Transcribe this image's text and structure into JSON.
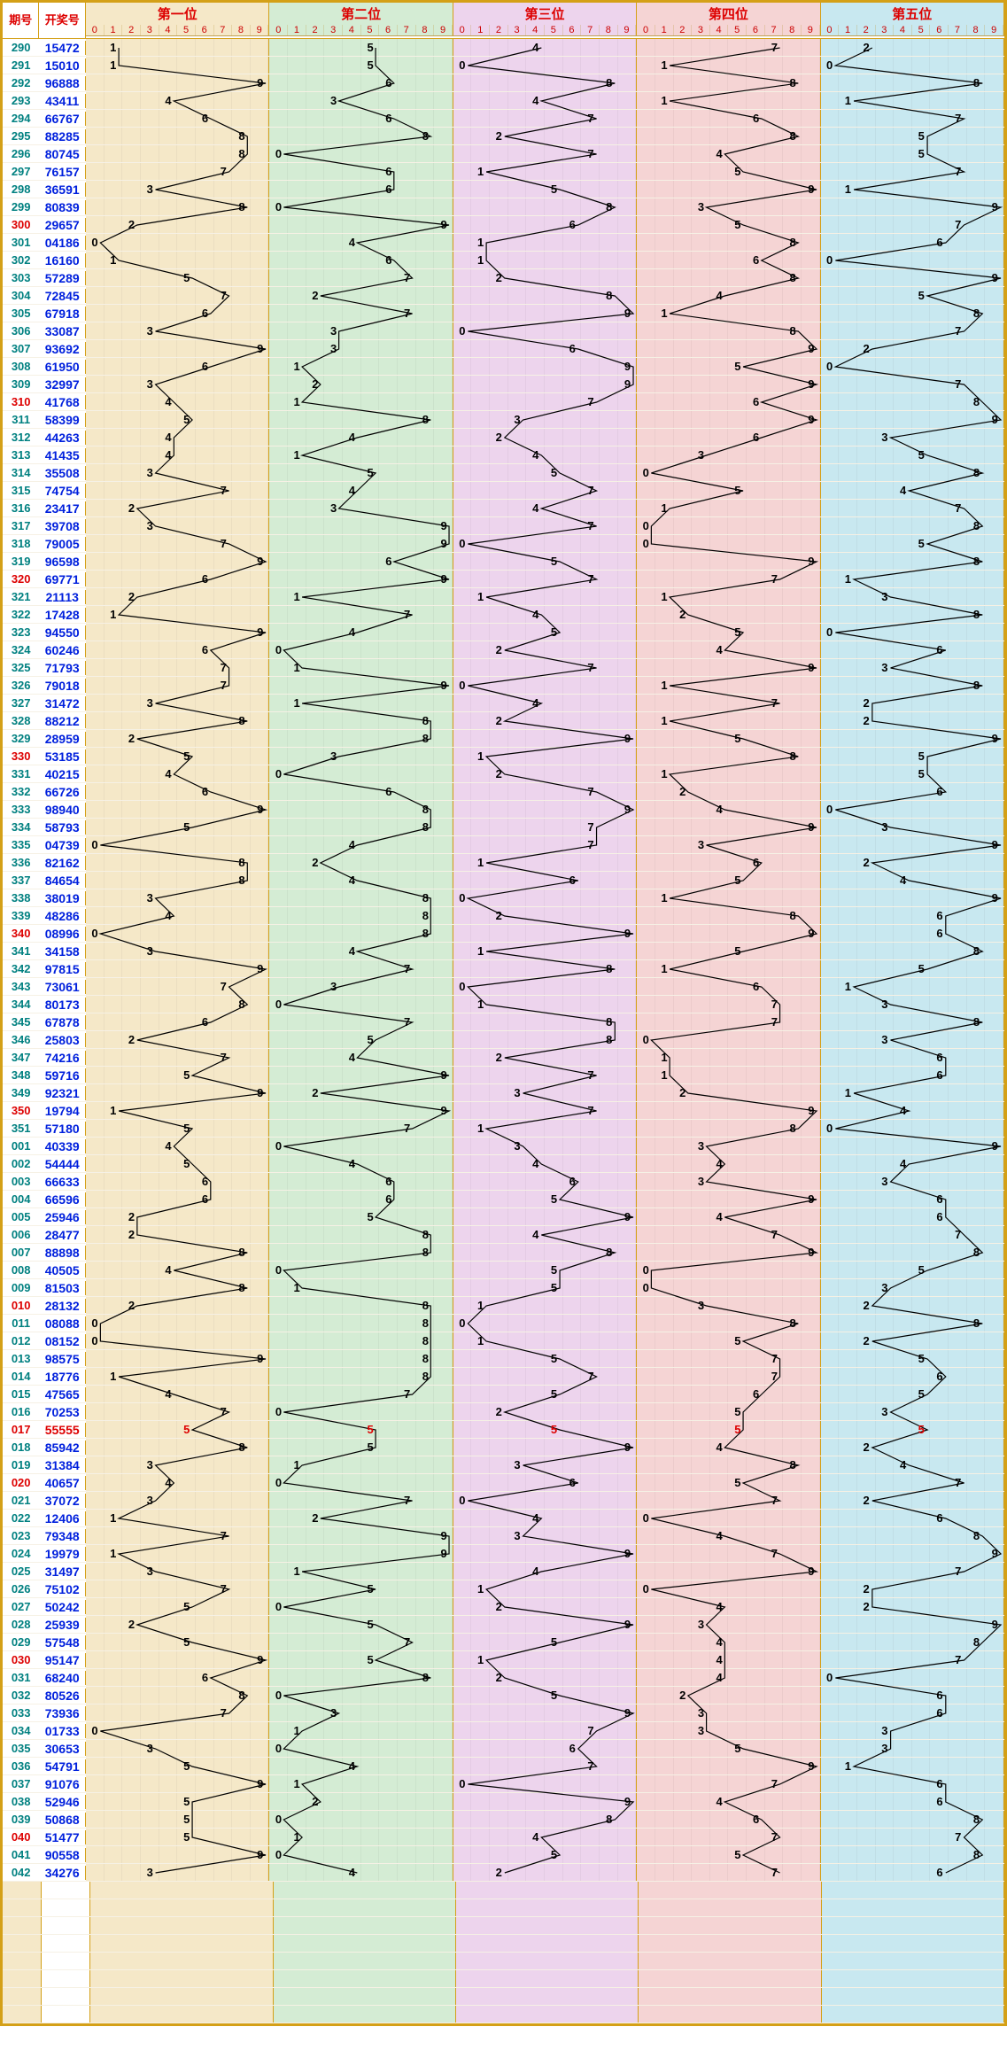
{
  "columns": {
    "qh": "期号",
    "kj": "开奖号",
    "positions": [
      "第一位",
      "第二位",
      "第三位",
      "第四位",
      "第五位"
    ]
  },
  "digits": [
    "0",
    "1",
    "2",
    "3",
    "4",
    "5",
    "6",
    "7",
    "8",
    "9"
  ],
  "position_bg": [
    "#f5e8c8",
    "#d4ecd4",
    "#edd4ed",
    "#f5d4d4",
    "#c8e8f0"
  ],
  "line_color": "#000000",
  "line_width": 1.2,
  "qh_colors": {
    "normal": "#008080",
    "red": "#dd0000"
  },
  "red_periods": [
    "300",
    "310",
    "320",
    "330",
    "340",
    "350",
    "010",
    "020",
    "030",
    "040",
    "017"
  ],
  "extra_blank_rows": 8,
  "rows": [
    {
      "q": "290",
      "n": "15472"
    },
    {
      "q": "291",
      "n": "15010"
    },
    {
      "q": "292",
      "n": "96888"
    },
    {
      "q": "293",
      "n": "43411"
    },
    {
      "q": "294",
      "n": "66767"
    },
    {
      "q": "295",
      "n": "88285"
    },
    {
      "q": "296",
      "n": "80745"
    },
    {
      "q": "297",
      "n": "76157"
    },
    {
      "q": "298",
      "n": "36591"
    },
    {
      "q": "299",
      "n": "80839"
    },
    {
      "q": "300",
      "n": "29657"
    },
    {
      "q": "301",
      "n": "04186"
    },
    {
      "q": "302",
      "n": "16160"
    },
    {
      "q": "303",
      "n": "57289"
    },
    {
      "q": "304",
      "n": "72845"
    },
    {
      "q": "305",
      "n": "67918"
    },
    {
      "q": "306",
      "n": "33087"
    },
    {
      "q": "307",
      "n": "93692"
    },
    {
      "q": "308",
      "n": "61950"
    },
    {
      "q": "309",
      "n": "32997"
    },
    {
      "q": "310",
      "n": "41768"
    },
    {
      "q": "311",
      "n": "58399"
    },
    {
      "q": "312",
      "n": "44263"
    },
    {
      "q": "313",
      "n": "41435"
    },
    {
      "q": "314",
      "n": "35508"
    },
    {
      "q": "315",
      "n": "74754"
    },
    {
      "q": "316",
      "n": "23417"
    },
    {
      "q": "317",
      "n": "39708"
    },
    {
      "q": "318",
      "n": "79005"
    },
    {
      "q": "319",
      "n": "96598"
    },
    {
      "q": "320",
      "n": "69771"
    },
    {
      "q": "321",
      "n": "21113"
    },
    {
      "q": "322",
      "n": "17428"
    },
    {
      "q": "323",
      "n": "94550"
    },
    {
      "q": "324",
      "n": "60246"
    },
    {
      "q": "325",
      "n": "71793"
    },
    {
      "q": "326",
      "n": "79018"
    },
    {
      "q": "327",
      "n": "31472"
    },
    {
      "q": "328",
      "n": "88212"
    },
    {
      "q": "329",
      "n": "28959"
    },
    {
      "q": "330",
      "n": "53185"
    },
    {
      "q": "331",
      "n": "40215"
    },
    {
      "q": "332",
      "n": "66726"
    },
    {
      "q": "333",
      "n": "98940"
    },
    {
      "q": "334",
      "n": "58793"
    },
    {
      "q": "335",
      "n": "04739"
    },
    {
      "q": "336",
      "n": "82162"
    },
    {
      "q": "337",
      "n": "84654"
    },
    {
      "q": "338",
      "n": "38019"
    },
    {
      "q": "339",
      "n": "48286"
    },
    {
      "q": "340",
      "n": "08996"
    },
    {
      "q": "341",
      "n": "34158"
    },
    {
      "q": "342",
      "n": "97815"
    },
    {
      "q": "343",
      "n": "73061"
    },
    {
      "q": "344",
      "n": "80173"
    },
    {
      "q": "345",
      "n": "67878"
    },
    {
      "q": "346",
      "n": "25803"
    },
    {
      "q": "347",
      "n": "74216"
    },
    {
      "q": "348",
      "n": "59716"
    },
    {
      "q": "349",
      "n": "92321"
    },
    {
      "q": "350",
      "n": "19794"
    },
    {
      "q": "351",
      "n": "57180"
    },
    {
      "q": "001",
      "n": "40339"
    },
    {
      "q": "002",
      "n": "54444"
    },
    {
      "q": "003",
      "n": "66633"
    },
    {
      "q": "004",
      "n": "66596"
    },
    {
      "q": "005",
      "n": "25946"
    },
    {
      "q": "006",
      "n": "28477"
    },
    {
      "q": "007",
      "n": "88898"
    },
    {
      "q": "008",
      "n": "40505"
    },
    {
      "q": "009",
      "n": "81503"
    },
    {
      "q": "010",
      "n": "28132"
    },
    {
      "q": "011",
      "n": "08088"
    },
    {
      "q": "012",
      "n": "08152"
    },
    {
      "q": "013",
      "n": "98575"
    },
    {
      "q": "014",
      "n": "18776"
    },
    {
      "q": "015",
      "n": "47565"
    },
    {
      "q": "016",
      "n": "70253"
    },
    {
      "q": "017",
      "n": "55555",
      "hl": true
    },
    {
      "q": "018",
      "n": "85942"
    },
    {
      "q": "019",
      "n": "31384"
    },
    {
      "q": "020",
      "n": "40657"
    },
    {
      "q": "021",
      "n": "37072"
    },
    {
      "q": "022",
      "n": "12406"
    },
    {
      "q": "023",
      "n": "79348"
    },
    {
      "q": "024",
      "n": "19979"
    },
    {
      "q": "025",
      "n": "31497"
    },
    {
      "q": "026",
      "n": "75102"
    },
    {
      "q": "027",
      "n": "50242"
    },
    {
      "q": "028",
      "n": "25939"
    },
    {
      "q": "029",
      "n": "57548"
    },
    {
      "q": "030",
      "n": "95147"
    },
    {
      "q": "031",
      "n": "68240"
    },
    {
      "q": "032",
      "n": "80526"
    },
    {
      "q": "033",
      "n": "73936"
    },
    {
      "q": "034",
      "n": "01733"
    },
    {
      "q": "035",
      "n": "30653"
    },
    {
      "q": "036",
      "n": "54791"
    },
    {
      "q": "037",
      "n": "91076"
    },
    {
      "q": "038",
      "n": "52946"
    },
    {
      "q": "039",
      "n": "50868"
    },
    {
      "q": "040",
      "n": "51477"
    },
    {
      "q": "041",
      "n": "90558"
    },
    {
      "q": "042",
      "n": "34276"
    }
  ]
}
